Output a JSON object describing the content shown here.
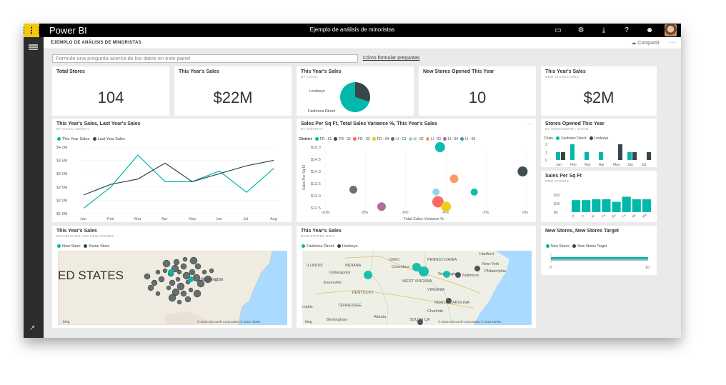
{
  "topbar": {
    "app": "Power BI",
    "title": "Ejemplo de análisis de minoristas"
  },
  "header": {
    "dashboard": "EJEMPLO DE ANÁLISIS DE MINORISTAS",
    "share": "Compartir",
    "more": "···"
  },
  "qna": {
    "placeholder": "Formule una pregunta acerca de los datos en este panel",
    "howto": "Cómo formular preguntas"
  },
  "colors": {
    "teal": "#01b8aa",
    "dark": "#374649",
    "gray": "#5f6b6d",
    "yellow": "#f2c811",
    "salmon": "#fd625e",
    "blue": "#8ad4eb",
    "orange": "#fe9666",
    "purple": "#a66999"
  },
  "tiles": {
    "total_stores": {
      "title": "Total Stores",
      "value": "104"
    },
    "this_year_sales": {
      "title": "This Year's Sales",
      "value": "$22M"
    },
    "sales_by_chain": {
      "title": "This Year's Sales",
      "subtitle": "BY CHAIN",
      "label1": "Lindseys",
      "label2": "Fashions Direct"
    },
    "new_stores_opened": {
      "title": "New Stores Opened This Year",
      "value": "10"
    },
    "sales_new_stores": {
      "title": "This Year's Sales",
      "subtitle": "NEW STORES ONLY",
      "value": "$2M"
    },
    "line_chart": {
      "title": "This Year's Sales, Last Year's Sales",
      "subtitle": "BY FISCAL MONTH",
      "legend1": "This Year Sales",
      "legend2": "Last Year Sales"
    },
    "scatter": {
      "title": "Sales Per Sq Ft, Total Sales Variance %, This Year's Sales",
      "subtitle": "BY DISTRICT",
      "legend_title": "District",
      "more": "···",
      "xlabel": "Total Sales Variance %",
      "ylabel": "Sales Per Sq Ft"
    },
    "stores_opened": {
      "title": "Stores Opened This Year",
      "subtitle": "BY OPEN MONTH, CHAIN",
      "legend_title": "Chain",
      "legend1": "Fashions Direct",
      "legend2": "Lindseys"
    },
    "sales_per_sqft": {
      "title": "Sales Per Sq Ft",
      "subtitle": "NEW STORES"
    },
    "map1": {
      "title": "This Year's Sales",
      "subtitle": "ESTABLISHED AND NEW STORES",
      "legend1": "New Store",
      "legend2": "Same Store",
      "big_label": "ED STATES",
      "city1": "Washington",
      "copyright": "© 2016 Microsoft Corporation   © 2016 HERE",
      "bing": "bing"
    },
    "map2": {
      "title": "This Year's Sales",
      "subtitle": "NEW STORES ONLY",
      "legend1": "Fashions Direct",
      "legend2": "Lindseys",
      "places": [
        "ILLINOIS",
        "INDIANA",
        "OHIO",
        "Columbus",
        "PENNSYLVANIA",
        "Hartford",
        "New York",
        "Philadelphia",
        "Washington",
        "Baltimore",
        "WEST VIRGINIA",
        "VIRGINIA",
        "KENTUCKY",
        "TENNESSEE",
        "NORTH CAROLINA",
        "Charlotte",
        "Indianapolis",
        "Evansville",
        "Atlanta",
        "Birmingham",
        "SOUTH CA",
        "mphis"
      ],
      "copyright": "© 2016 Microsoft Corporation   © 2016 HERE",
      "bing": "bing"
    },
    "target": {
      "title": "New Stores, New Stores Target",
      "legend1": "New Stores",
      "legend2": "New Stores Target",
      "tick0": "0",
      "tick10": "10"
    }
  },
  "chart_data": [
    {
      "type": "pie",
      "title": "This Year's Sales",
      "categories": [
        "Lindseys",
        "Fashions Direct"
      ],
      "values": [
        30,
        70
      ]
    },
    {
      "type": "line",
      "title": "This Year's Sales, Last Year's Sales",
      "categories": [
        "Jan",
        "Feb",
        "Mar",
        "Apr",
        "May",
        "Jun",
        "Jul",
        "Aug"
      ],
      "yticks": [
        "$4.0M",
        "$3.5M",
        "$3.0M",
        "$2.5M",
        "$2.0M",
        "$1.5M"
      ],
      "ylim": [
        1.5,
        4.0
      ],
      "series": [
        {
          "name": "This Year Sales",
          "values": [
            1.7,
            2.5,
            3.7,
            2.7,
            2.7,
            3.1,
            2.3,
            3.2
          ]
        },
        {
          "name": "Last Year Sales",
          "values": [
            2.2,
            2.6,
            2.8,
            3.4,
            2.7,
            3.0,
            3.3,
            3.5
          ]
        }
      ]
    },
    {
      "type": "scatter",
      "title": "Sales Per Sq Ft, Total Sales Variance %, This Year's Sales",
      "xticks": [
        "-10%",
        "-8%",
        "-6%",
        "-4%",
        "-2%",
        "0%"
      ],
      "xlim": [
        -10,
        0
      ],
      "yticks": [
        "$15.0",
        "$14.5",
        "$14.0",
        "$13.5",
        "$13.0",
        "$12.5"
      ],
      "ylim": [
        12.5,
        15.0
      ],
      "legend": [
        "FD - 01",
        "FD - 02",
        "FD - 03",
        "FD - 04",
        "LI - 01",
        "LI - 02",
        "LI - 03",
        "LI - 04",
        "LI - 05"
      ],
      "points": [
        {
          "x": -4.3,
          "y": 15.0,
          "r": 7,
          "color": "#01b8aa"
        },
        {
          "x": -3.6,
          "y": 13.7,
          "r": 6,
          "color": "#fe9666"
        },
        {
          "x": -8.6,
          "y": 13.25,
          "r": 5.5,
          "color": "#5f6b6d"
        },
        {
          "x": -4.5,
          "y": 13.15,
          "r": 5,
          "color": "#8ad4eb"
        },
        {
          "x": -4.4,
          "y": 12.75,
          "r": 8,
          "color": "#fd625e"
        },
        {
          "x": -4.0,
          "y": 12.55,
          "r": 7,
          "color": "#f2c811"
        },
        {
          "x": -2.6,
          "y": 13.15,
          "r": 5,
          "color": "#01b8aa"
        },
        {
          "x": -0.2,
          "y": 14.0,
          "r": 7,
          "color": "#374649"
        },
        {
          "x": -7.2,
          "y": 12.55,
          "r": 6,
          "color": "#a66999"
        }
      ]
    },
    {
      "type": "bar",
      "title": "Stores Opened This Year",
      "categories": [
        "Jan",
        "Feb",
        "Mar",
        "Apr",
        "May",
        "Jun",
        "Jul"
      ],
      "yticks": [
        "2",
        "1",
        "0"
      ],
      "ylim": [
        0,
        2
      ],
      "series": [
        {
          "name": "Fashions Direct",
          "values": [
            1,
            2,
            1,
            1,
            0,
            1,
            0
          ]
        },
        {
          "name": "Lindseys",
          "values": [
            1,
            0,
            0,
            0,
            2,
            1,
            1
          ]
        }
      ]
    },
    {
      "type": "bar",
      "title": "Sales Per Sq Ft",
      "categories": [
        "Cl",
        "Ti",
        "Ki",
        "Pe",
        "Bo",
        "Fa",
        "Wi",
        "Wa"
      ],
      "yticks": [
        "$20",
        "$10",
        "$0"
      ],
      "ylim": [
        0,
        20
      ],
      "values": [
        14,
        14,
        15,
        15,
        12,
        18,
        15,
        15
      ]
    },
    {
      "type": "bar",
      "title": "New Stores, New Stores Target",
      "xlim": [
        0,
        10
      ],
      "values": [
        10
      ],
      "target": 10
    }
  ]
}
